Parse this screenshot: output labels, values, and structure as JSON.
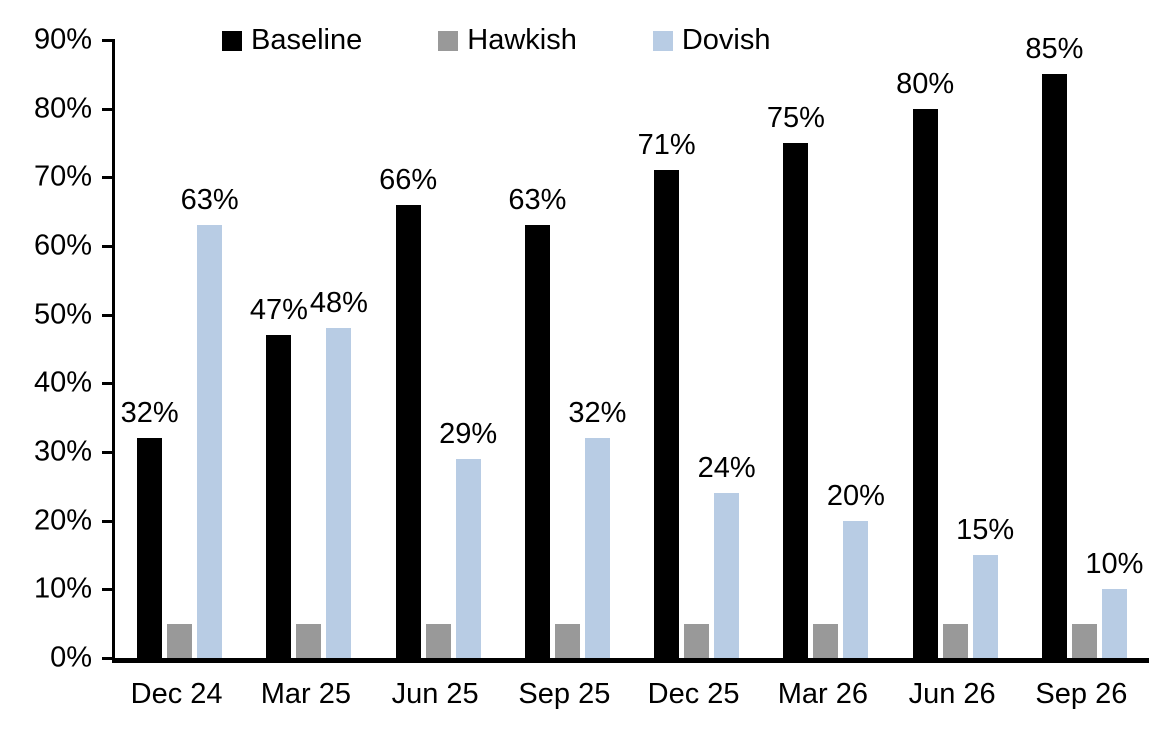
{
  "chart_data": {
    "type": "bar",
    "title": "",
    "categories": [
      "Dec 24",
      "Mar 25",
      "Jun 25",
      "Sep 25",
      "Dec 25",
      "Mar 26",
      "Jun 26",
      "Sep 26"
    ],
    "series": [
      {
        "name": "Baseline",
        "color": "#000000",
        "values": [
          32,
          47,
          66,
          63,
          71,
          75,
          80,
          85
        ],
        "data_labels": [
          "32%",
          "47%",
          "66%",
          "63%",
          "71%",
          "75%",
          "80%",
          "85%"
        ],
        "show_labels": true
      },
      {
        "name": "Hawkish",
        "color": "#999999",
        "values": [
          5,
          5,
          5,
          5,
          5,
          5,
          5,
          5
        ],
        "data_labels": [],
        "show_labels": false
      },
      {
        "name": "Dovish",
        "color": "#B8CCE4",
        "values": [
          63,
          48,
          29,
          32,
          24,
          20,
          15,
          10
        ],
        "data_labels": [
          "63%",
          "48%",
          "29%",
          "32%",
          "24%",
          "20%",
          "15%",
          "10%"
        ],
        "show_labels": true
      }
    ],
    "ylim": [
      0,
      90
    ],
    "ytick_labels": [
      "0%",
      "10%",
      "20%",
      "30%",
      "40%",
      "50%",
      "60%",
      "70%",
      "80%",
      "90%"
    ],
    "ytick_values": [
      0,
      10,
      20,
      30,
      40,
      50,
      60,
      70,
      80,
      90
    ],
    "grid": false,
    "legend_position": "top",
    "axis_color": "#000000",
    "background_color": "#ffffff"
  }
}
